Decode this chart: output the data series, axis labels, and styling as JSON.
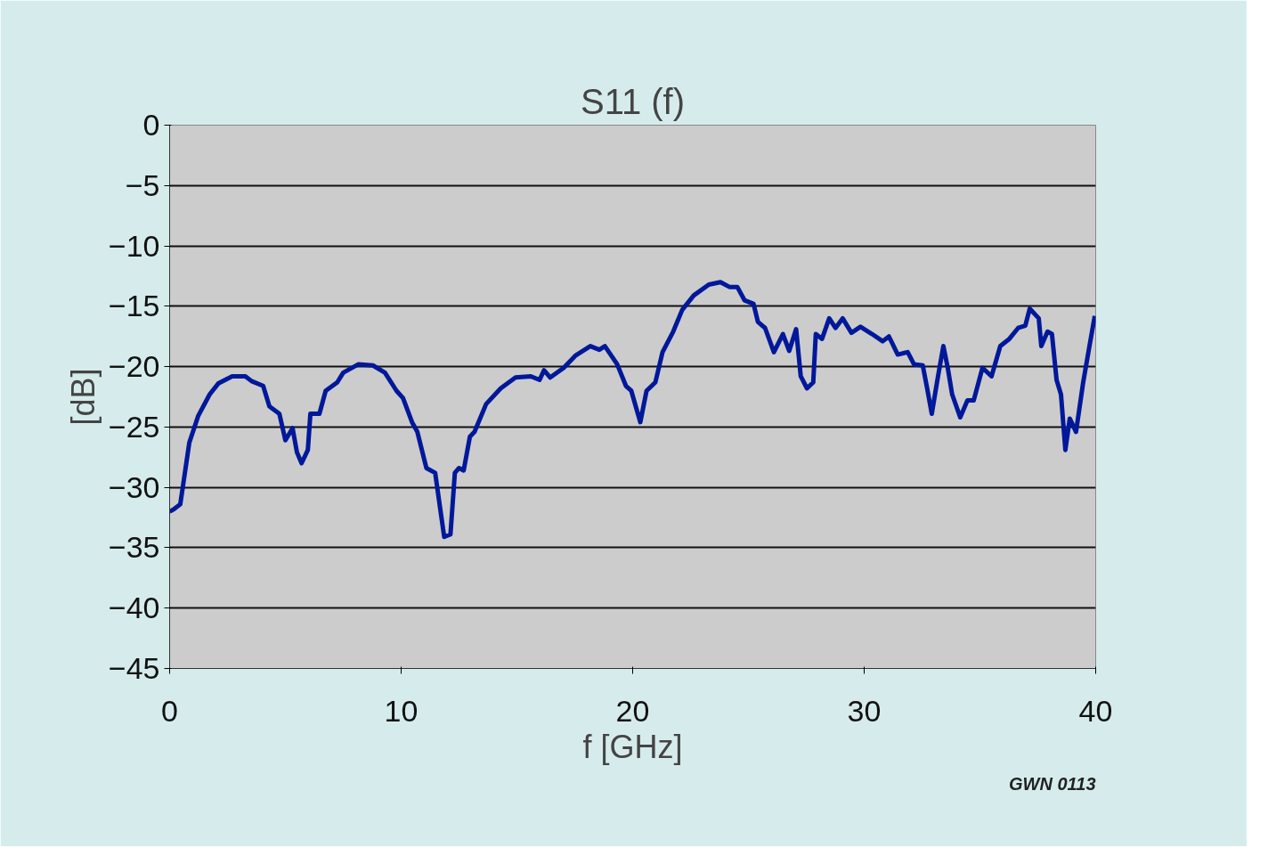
{
  "chart_data": {
    "type": "line",
    "title": "S11 (f)",
    "xlabel": "f [GHz]",
    "ylabel": "[dB]",
    "annotations": [
      "GWN 0113"
    ],
    "xlim": [
      0,
      40
    ],
    "xticks": [
      0,
      10,
      20,
      30,
      40
    ],
    "ylim": [
      -45,
      0
    ],
    "yticks": [
      0,
      -5,
      -10,
      -15,
      -20,
      -25,
      -30,
      -35,
      -40,
      -45
    ],
    "grid": "y",
    "marker": "none",
    "line_style": "solid",
    "series": [
      {
        "color": "#00189a",
        "x": [
          0,
          0.19,
          0.46,
          0.85,
          1.23,
          1.73,
          2.1,
          2.7,
          3.27,
          3.54,
          4.04,
          4.31,
          4.74,
          5.0,
          5.31,
          5.5,
          5.7,
          5.97,
          6.08,
          6.47,
          6.74,
          7.24,
          7.5,
          8.16,
          8.78,
          9.3,
          9.8,
          10.08,
          10.47,
          10.7,
          11.09,
          11.47,
          11.66,
          11.86,
          12.13,
          12.32,
          12.5,
          12.7,
          12.97,
          13.17,
          13.67,
          14.3,
          14.94,
          15.6,
          15.98,
          16.17,
          16.44,
          17.02,
          17.52,
          18.17,
          18.56,
          18.8,
          19.33,
          19.71,
          19.94,
          20.33,
          20.6,
          20.98,
          21.29,
          21.75,
          22.14,
          22.64,
          23.29,
          23.79,
          24.18,
          24.52,
          24.83,
          25.22,
          25.41,
          25.72,
          26.1,
          26.49,
          26.76,
          27.06,
          27.26,
          27.53,
          27.8,
          27.91,
          28.18,
          28.49,
          28.76,
          29.07,
          29.45,
          29.84,
          30.34,
          30.8,
          31.07,
          31.45,
          31.88,
          32.15,
          32.53,
          32.72,
          32.92,
          33.19,
          33.42,
          33.61,
          33.8,
          34.15,
          34.46,
          34.73,
          35.11,
          35.5,
          35.88,
          36.27,
          36.65,
          36.96,
          37.15,
          37.54,
          37.65,
          37.92,
          38.11,
          38.31,
          38.5,
          38.69,
          38.88,
          39.15,
          39.46,
          39.73,
          39.96
        ],
        "values": [
          -32,
          -31.8,
          -31.4,
          -26.3,
          -24.1,
          -22.3,
          -21.4,
          -20.8,
          -20.8,
          -21.2,
          -21.6,
          -23.3,
          -23.9,
          -26.1,
          -25.1,
          -27.1,
          -28.0,
          -26.9,
          -23.9,
          -23.9,
          -22.0,
          -21.3,
          -20.5,
          -19.8,
          -19.9,
          -20.5,
          -22.0,
          -22.6,
          -24.6,
          -25.4,
          -28.4,
          -28.8,
          -31.4,
          -34.1,
          -33.9,
          -28.8,
          -28.4,
          -28.6,
          -25.8,
          -25.4,
          -23.1,
          -21.8,
          -20.9,
          -20.8,
          -21.1,
          -20.3,
          -20.9,
          -20.1,
          -19.1,
          -18.3,
          -18.6,
          -18.3,
          -19.8,
          -21.6,
          -22.0,
          -24.6,
          -22.0,
          -21.3,
          -18.8,
          -17.1,
          -15.3,
          -14.1,
          -13.2,
          -13.0,
          -13.4,
          -13.4,
          -14.5,
          -14.8,
          -16.3,
          -16.8,
          -18.8,
          -17.3,
          -18.7,
          -16.9,
          -20.8,
          -21.8,
          -21.3,
          -17.3,
          -17.7,
          -16.0,
          -16.8,
          -16.0,
          -17.2,
          -16.7,
          -17.3,
          -17.9,
          -17.5,
          -19.0,
          -18.8,
          -19.8,
          -19.9,
          -21.8,
          -23.9,
          -20.8,
          -18.3,
          -20.1,
          -22.3,
          -24.2,
          -22.8,
          -22.8,
          -20.1,
          -20.8,
          -18.3,
          -17.7,
          -16.8,
          -16.6,
          -15.2,
          -16.0,
          -18.3,
          -17.1,
          -17.3,
          -21.1,
          -22.3,
          -26.9,
          -24.3,
          -25.4,
          -21.3,
          -18.3,
          -15.8
        ]
      }
    ]
  }
}
